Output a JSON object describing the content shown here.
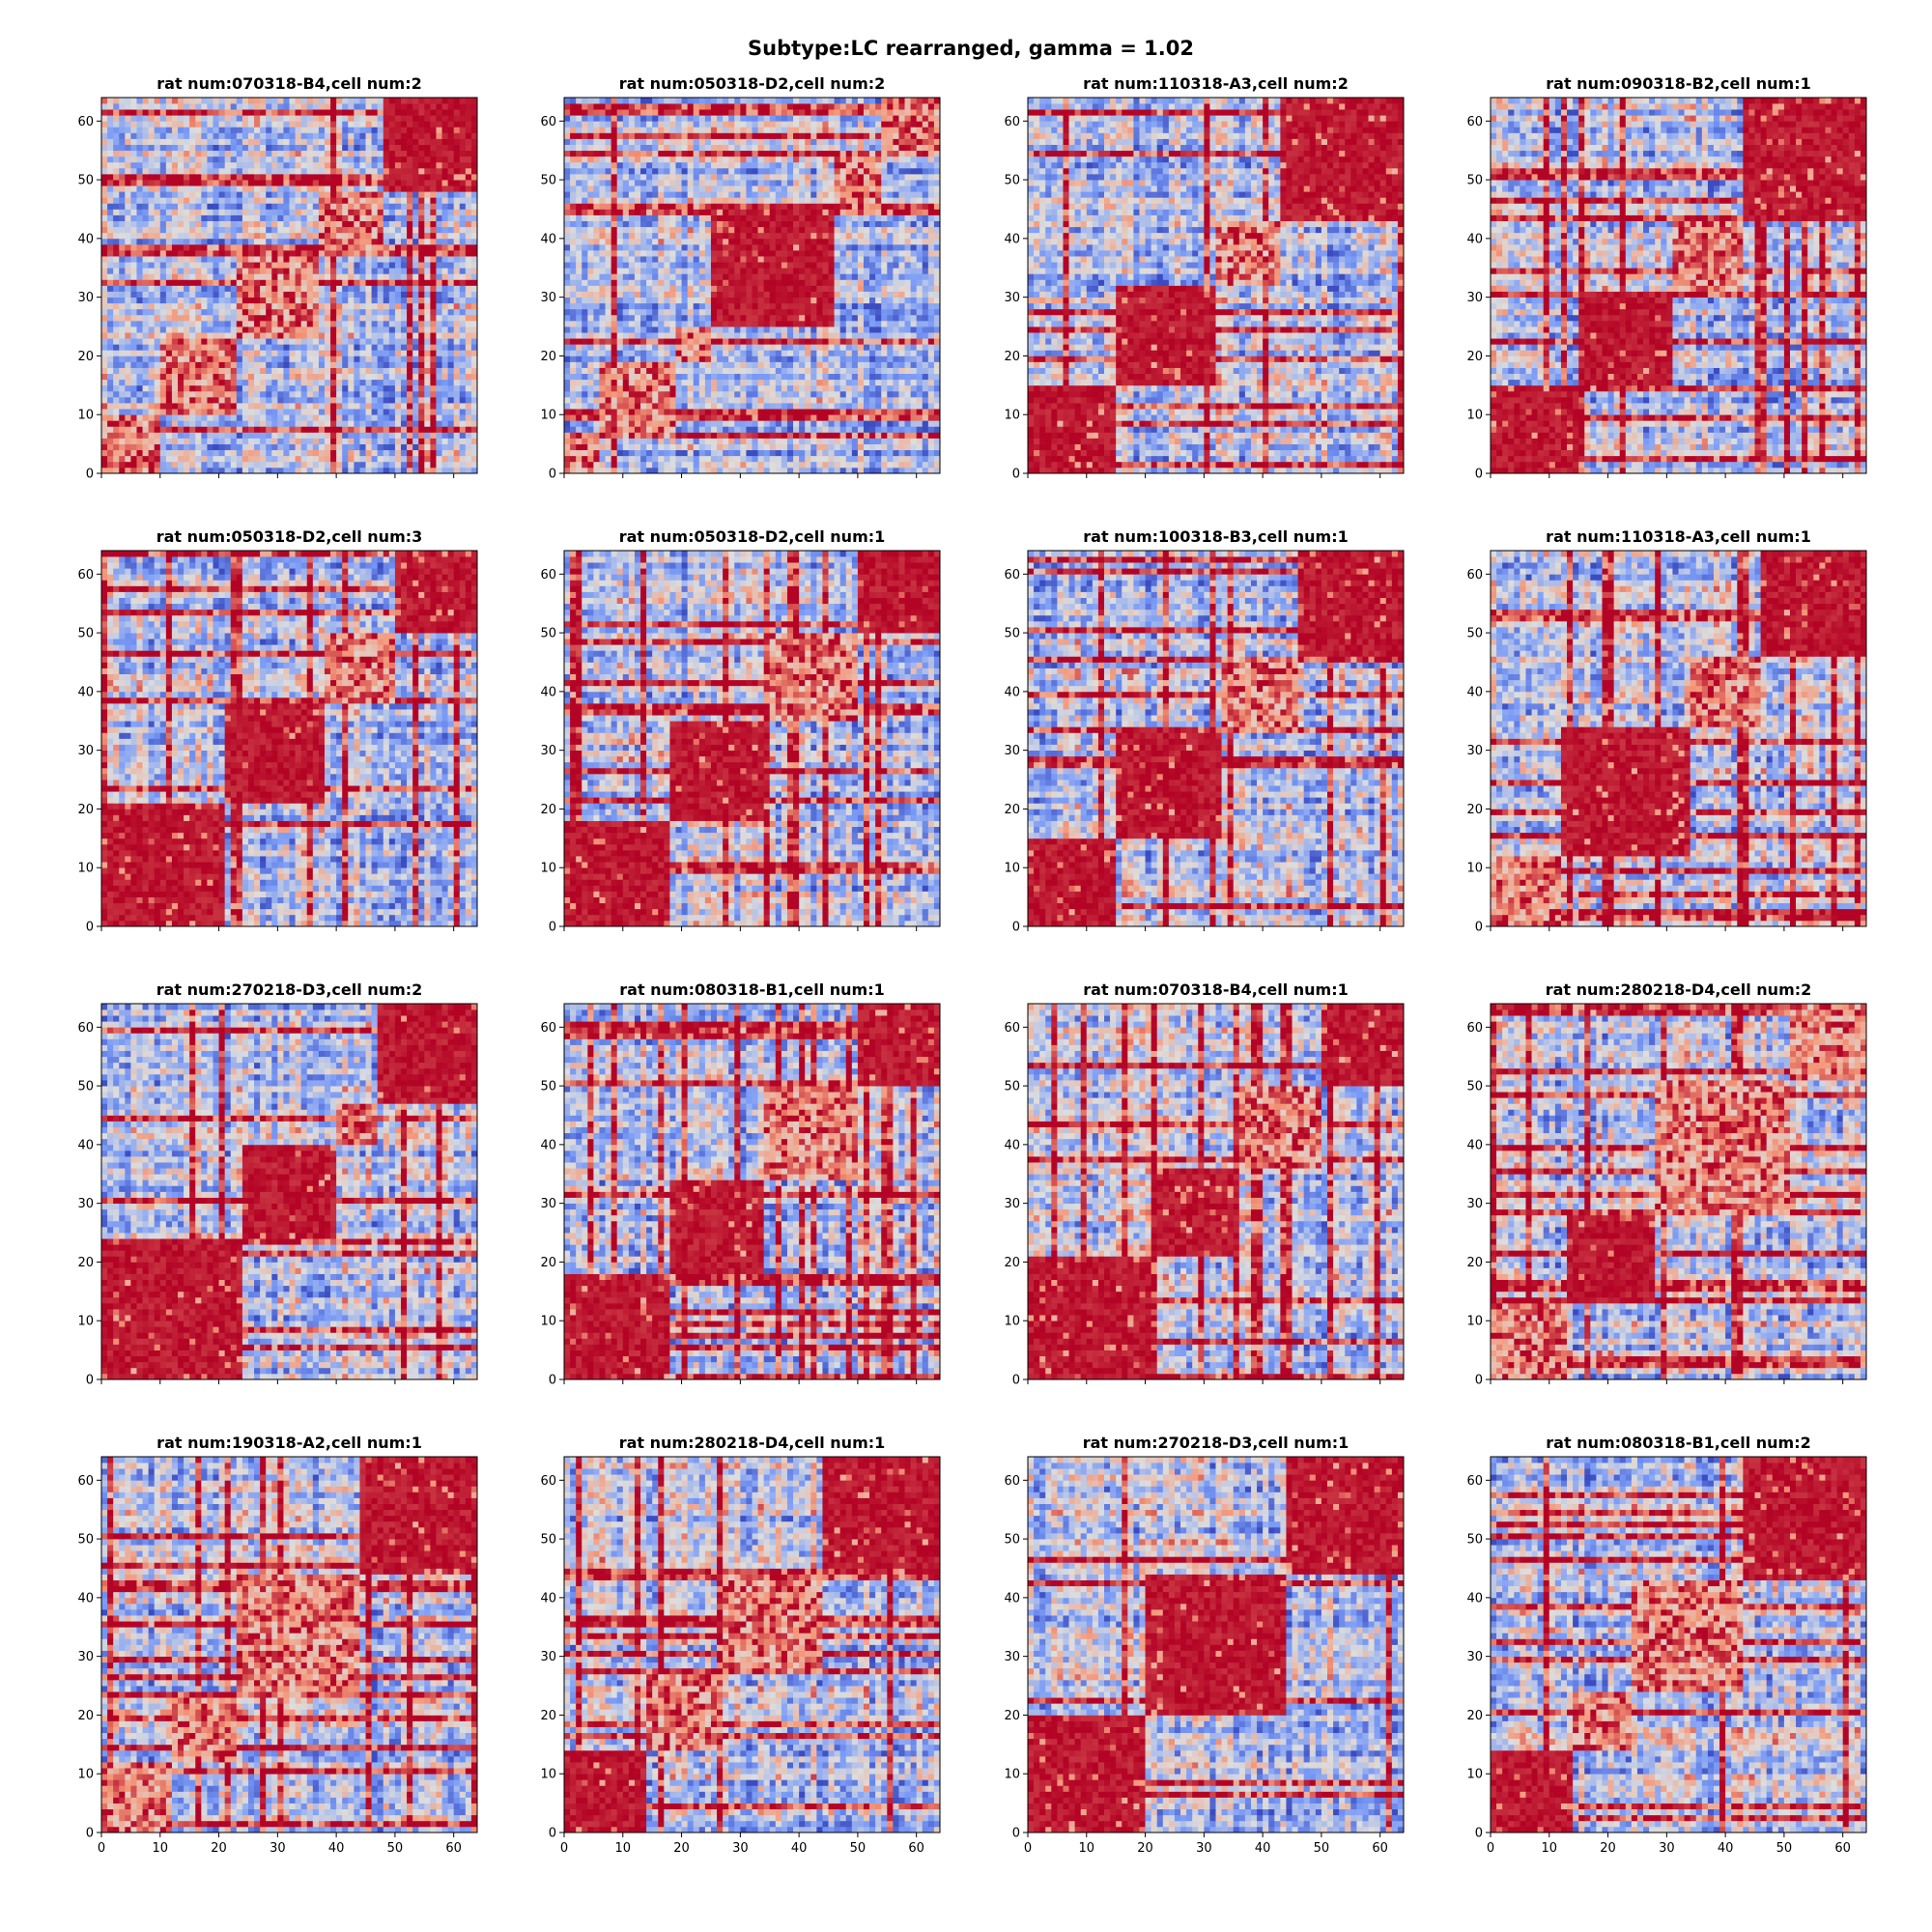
{
  "figure": {
    "title": "Subtype:LC rearranged, gamma = 1.02"
  },
  "chart_data": {
    "type": "heatmap",
    "colormap": "coolwarm",
    "colors": {
      "low": "#3b4cc0",
      "mid": "#dddddd",
      "high": "#b40426"
    },
    "matrix_size": 64,
    "xlim": [
      0,
      64
    ],
    "ylim": [
      0,
      64
    ],
    "y_ticks": [
      "0",
      "10",
      "20",
      "30",
      "40",
      "50",
      "60"
    ],
    "x_ticks": [
      "0",
      "10",
      "20",
      "30",
      "40",
      "50",
      "60"
    ],
    "x_tick_labels_shown_on_bottom_row_only": true,
    "grid": false,
    "panels": [
      {
        "title": "rat num:070318-B4,cell num:2",
        "blocks": [
          [
            0,
            10
          ],
          [
            10,
            23
          ],
          [
            23,
            37
          ],
          [
            37,
            48
          ],
          [
            48,
            64
          ]
        ]
      },
      {
        "title": "rat num:050318-D2,cell num:2",
        "blocks": [
          [
            0,
            6
          ],
          [
            6,
            19
          ],
          [
            19,
            25
          ],
          [
            25,
            46
          ],
          [
            46,
            54
          ],
          [
            54,
            64
          ]
        ]
      },
      {
        "title": "rat num:110318-A3,cell num:2",
        "blocks": [
          [
            0,
            15
          ],
          [
            15,
            32
          ],
          [
            32,
            43
          ],
          [
            43,
            64
          ]
        ]
      },
      {
        "title": "rat num:090318-B2,cell num:1",
        "blocks": [
          [
            0,
            15
          ],
          [
            15,
            31
          ],
          [
            31,
            43
          ],
          [
            43,
            64
          ]
        ]
      },
      {
        "title": "rat num:050318-D2,cell num:3",
        "blocks": [
          [
            0,
            21
          ],
          [
            21,
            38
          ],
          [
            38,
            50
          ],
          [
            50,
            64
          ]
        ]
      },
      {
        "title": "rat num:050318-D2,cell num:1",
        "blocks": [
          [
            0,
            18
          ],
          [
            18,
            35
          ],
          [
            35,
            50
          ],
          [
            50,
            64
          ]
        ]
      },
      {
        "title": "rat num:100318-B3,cell num:1",
        "blocks": [
          [
            0,
            15
          ],
          [
            15,
            33
          ],
          [
            33,
            46
          ],
          [
            46,
            64
          ]
        ]
      },
      {
        "title": "rat num:110318-A3,cell num:1",
        "blocks": [
          [
            0,
            12
          ],
          [
            12,
            34
          ],
          [
            34,
            46
          ],
          [
            46,
            64
          ]
        ]
      },
      {
        "title": "rat num:270218-D3,cell num:2",
        "blocks": [
          [
            0,
            24
          ],
          [
            24,
            40
          ],
          [
            40,
            47
          ],
          [
            47,
            64
          ]
        ]
      },
      {
        "title": "rat num:080318-B1,cell num:1",
        "blocks": [
          [
            0,
            18
          ],
          [
            18,
            34
          ],
          [
            34,
            50
          ],
          [
            50,
            64
          ]
        ]
      },
      {
        "title": "rat num:070318-B4,cell num:1",
        "blocks": [
          [
            0,
            21
          ],
          [
            21,
            36
          ],
          [
            36,
            50
          ],
          [
            50,
            64
          ]
        ]
      },
      {
        "title": "rat num:280218-D4,cell num:2",
        "blocks": [
          [
            0,
            13
          ],
          [
            13,
            28
          ],
          [
            28,
            51
          ],
          [
            51,
            64
          ]
        ]
      },
      {
        "title": "rat num:190318-A2,cell num:1",
        "blocks": [
          [
            0,
            12
          ],
          [
            12,
            23
          ],
          [
            23,
            44
          ],
          [
            44,
            64
          ]
        ]
      },
      {
        "title": "rat num:280218-D4,cell num:1",
        "blocks": [
          [
            0,
            14
          ],
          [
            14,
            27
          ],
          [
            27,
            44
          ],
          [
            44,
            64
          ]
        ]
      },
      {
        "title": "rat num:270218-D3,cell num:1",
        "blocks": [
          [
            0,
            20
          ],
          [
            20,
            44
          ],
          [
            44,
            64
          ]
        ]
      },
      {
        "title": "rat num:080318-B1,cell num:2",
        "blocks": [
          [
            0,
            14
          ],
          [
            14,
            24
          ],
          [
            24,
            43
          ],
          [
            43,
            64
          ]
        ]
      }
    ]
  }
}
